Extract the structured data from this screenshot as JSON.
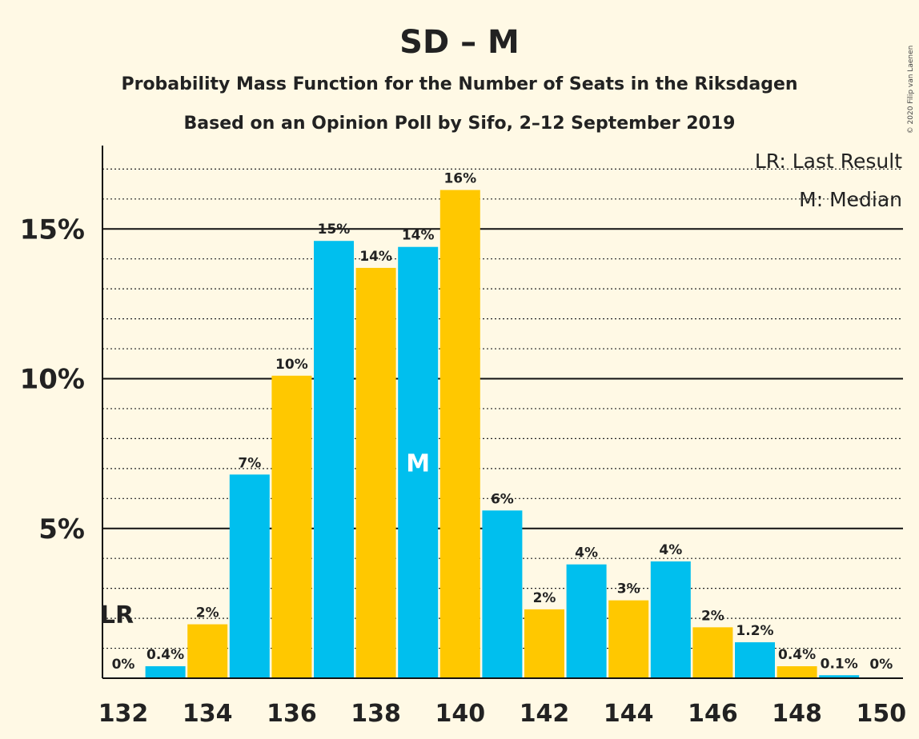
{
  "chart_data": {
    "type": "bar",
    "title": "SD – M",
    "subtitle_lines": [
      "Probability Mass Function for the Number of Seats in the Riksdagen",
      "Based on an Opinion Poll by Sifo, 2–12 September 2019"
    ],
    "copyright": "© 2020 Filip van Laenen",
    "x": [
      132,
      133,
      134,
      135,
      136,
      137,
      138,
      139,
      140,
      141,
      142,
      143,
      144,
      145,
      146,
      147,
      148,
      149,
      150
    ],
    "values": [
      0,
      0.4,
      1.8,
      6.8,
      10.1,
      14.6,
      13.7,
      14.4,
      16.3,
      5.6,
      2.3,
      3.8,
      2.6,
      3.9,
      1.7,
      1.2,
      0.4,
      0.1,
      0
    ],
    "labels": [
      "0%",
      "0.4%",
      "2%",
      "7%",
      "10%",
      "15%",
      "14%",
      "14%",
      "16%",
      "6%",
      "2%",
      "4%",
      "3%",
      "4%",
      "2%",
      "1.2%",
      "0.4%",
      "0.1%",
      "0%"
    ],
    "xticks": [
      "132",
      "134",
      "136",
      "138",
      "140",
      "142",
      "144",
      "146",
      "148",
      "150"
    ],
    "yticks": [
      {
        "value": 5,
        "label": "5%"
      },
      {
        "value": 10,
        "label": "10%"
      },
      {
        "value": 15,
        "label": "15%"
      }
    ],
    "ylim": [
      0,
      17.8
    ],
    "minor_grid_step": 1,
    "colors": {
      "even": "#ffc800",
      "odd": "#00bfee",
      "background": "#fff9e5",
      "text": "#222222"
    },
    "last_result": {
      "seats": 132,
      "label": "LR"
    },
    "median": {
      "seats": 139,
      "label": "M"
    },
    "legend": [
      "LR: Last Result",
      "M: Median"
    ],
    "legend_position": "top-right"
  }
}
